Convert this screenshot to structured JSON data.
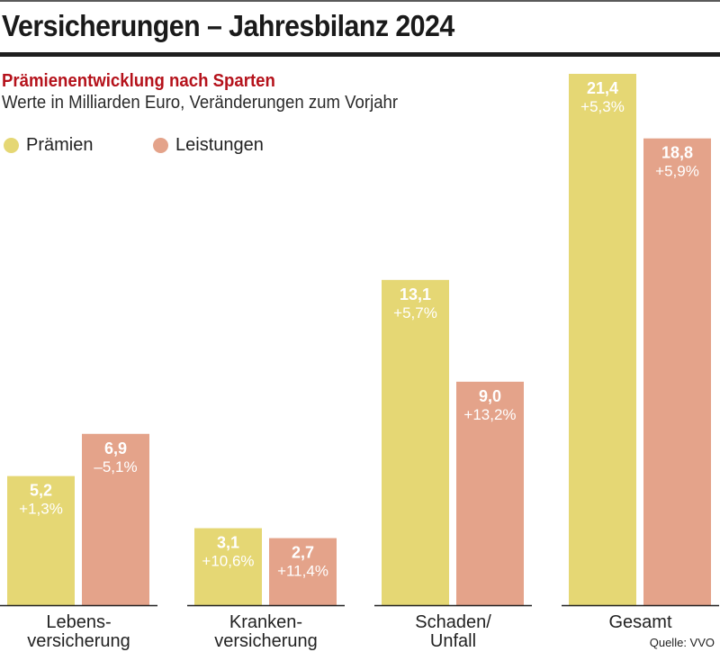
{
  "header": {
    "title": "Versicherungen – Jahresbilanz 2024",
    "subtitle": "Prämienentwicklung nach Sparten",
    "description": "Werte in Milliarden Euro, Veränderungen zum Vorjahr"
  },
  "source": "Quelle: VVO",
  "colors": {
    "praemien": "#e5d774",
    "leistungen": "#e4a38a",
    "subtitle": "#b5121b",
    "axis": "#222222"
  },
  "chart_data": {
    "type": "bar",
    "title": "Prämienentwicklung nach Sparten",
    "subtitle": "Werte in Milliarden Euro, Veränderungen zum Vorjahr",
    "xlabel": "",
    "ylabel": "Milliarden Euro",
    "ylim": [
      0,
      21.4
    ],
    "grid": false,
    "legend_position": "top-left",
    "categories": [
      [
        "Lebens-",
        "versicherung"
      ],
      [
        "Kranken-",
        "versicherung"
      ],
      [
        "Schaden/",
        "Unfall"
      ],
      [
        "Gesamt"
      ]
    ],
    "series": [
      {
        "name": "Prämien",
        "color": "#e5d774",
        "values": [
          5.2,
          3.1,
          13.1,
          21.4
        ],
        "value_labels": [
          "5,2",
          "3,1",
          "13,1",
          "21,4"
        ],
        "change_labels": [
          "+1,3%",
          "+10,6%",
          "+5,7%",
          "+5,3%"
        ]
      },
      {
        "name": "Leistungen",
        "color": "#e4a38a",
        "values": [
          6.9,
          2.7,
          9.0,
          18.8
        ],
        "value_labels": [
          "6,9",
          "2,7",
          "9,0",
          "18,8"
        ],
        "change_labels": [
          "–5,1%",
          "+11,4%",
          "+13,2%",
          "+5,9%"
        ]
      }
    ]
  }
}
